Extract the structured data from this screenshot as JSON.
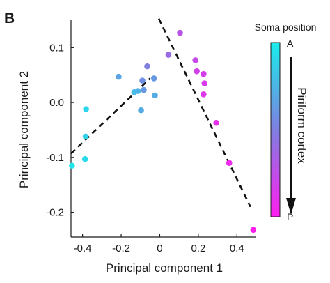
{
  "chart_data": {
    "type": "scatter",
    "panel_label": "B",
    "xlabel": "Principal component 1",
    "ylabel": "Principal component 2",
    "xlim": [
      -0.46,
      0.5
    ],
    "ylim": [
      -0.245,
      0.15
    ],
    "xticks": [
      {
        "value": -0.4,
        "label": "-0.4"
      },
      {
        "value": -0.2,
        "label": "-0.2"
      },
      {
        "value": 0,
        "label": "0"
      },
      {
        "value": 0.2,
        "label": "0.2"
      },
      {
        "value": 0.4,
        "label": "0.4"
      }
    ],
    "yticks": [
      {
        "value": 0.1,
        "label": "0.1"
      },
      {
        "value": 0,
        "label": "0.0"
      },
      {
        "value": -0.1,
        "label": "-0.1"
      },
      {
        "value": -0.2,
        "label": "-0.2"
      }
    ],
    "points": [
      {
        "x": 0.105,
        "y": 0.127,
        "t": 0.72
      },
      {
        "x": 0.045,
        "y": 0.087,
        "t": 0.6
      },
      {
        "x": 0.185,
        "y": 0.077,
        "t": 0.78
      },
      {
        "x": 0.192,
        "y": 0.057,
        "t": 0.82
      },
      {
        "x": 0.227,
        "y": 0.052,
        "t": 0.84
      },
      {
        "x": 0.232,
        "y": 0.035,
        "t": 0.86
      },
      {
        "x": 0.227,
        "y": 0.015,
        "t": 0.87
      },
      {
        "x": 0.293,
        "y": -0.037,
        "t": 0.9
      },
      {
        "x": 0.36,
        "y": -0.11,
        "t": 0.94
      },
      {
        "x": 0.485,
        "y": -0.232,
        "t": 1.0
      },
      {
        "x": -0.065,
        "y": 0.066,
        "t": 0.5
      },
      {
        "x": -0.03,
        "y": 0.044,
        "t": 0.38
      },
      {
        "x": -0.09,
        "y": 0.04,
        "t": 0.42
      },
      {
        "x": -0.213,
        "y": 0.047,
        "t": 0.32
      },
      {
        "x": -0.083,
        "y": 0.023,
        "t": 0.38
      },
      {
        "x": -0.132,
        "y": 0.019,
        "t": 0.22
      },
      {
        "x": -0.113,
        "y": 0.021,
        "t": 0.26
      },
      {
        "x": -0.025,
        "y": 0.013,
        "t": 0.3
      },
      {
        "x": -0.097,
        "y": -0.014,
        "t": 0.3
      },
      {
        "x": -0.382,
        "y": -0.012,
        "t": 0.1
      },
      {
        "x": -0.384,
        "y": -0.062,
        "t": 0.12
      },
      {
        "x": -0.387,
        "y": -0.103,
        "t": 0.08
      },
      {
        "x": -0.455,
        "y": -0.115,
        "t": 0.04
      }
    ],
    "fit_lines": [
      {
        "x1": -0.46,
        "y1": -0.093,
        "x2": -0.05,
        "y2": 0.044
      },
      {
        "x1": -0.005,
        "y1": 0.153,
        "x2": 0.47,
        "y2": -0.19
      }
    ],
    "colorbar": {
      "title": "Soma position",
      "top_label": "A",
      "bottom_label": "P",
      "annotation": "Piriform cortex",
      "color_top": "#19ecec",
      "color_mid": "#7f7fe0",
      "color_bottom": "#ff1ef0"
    }
  }
}
